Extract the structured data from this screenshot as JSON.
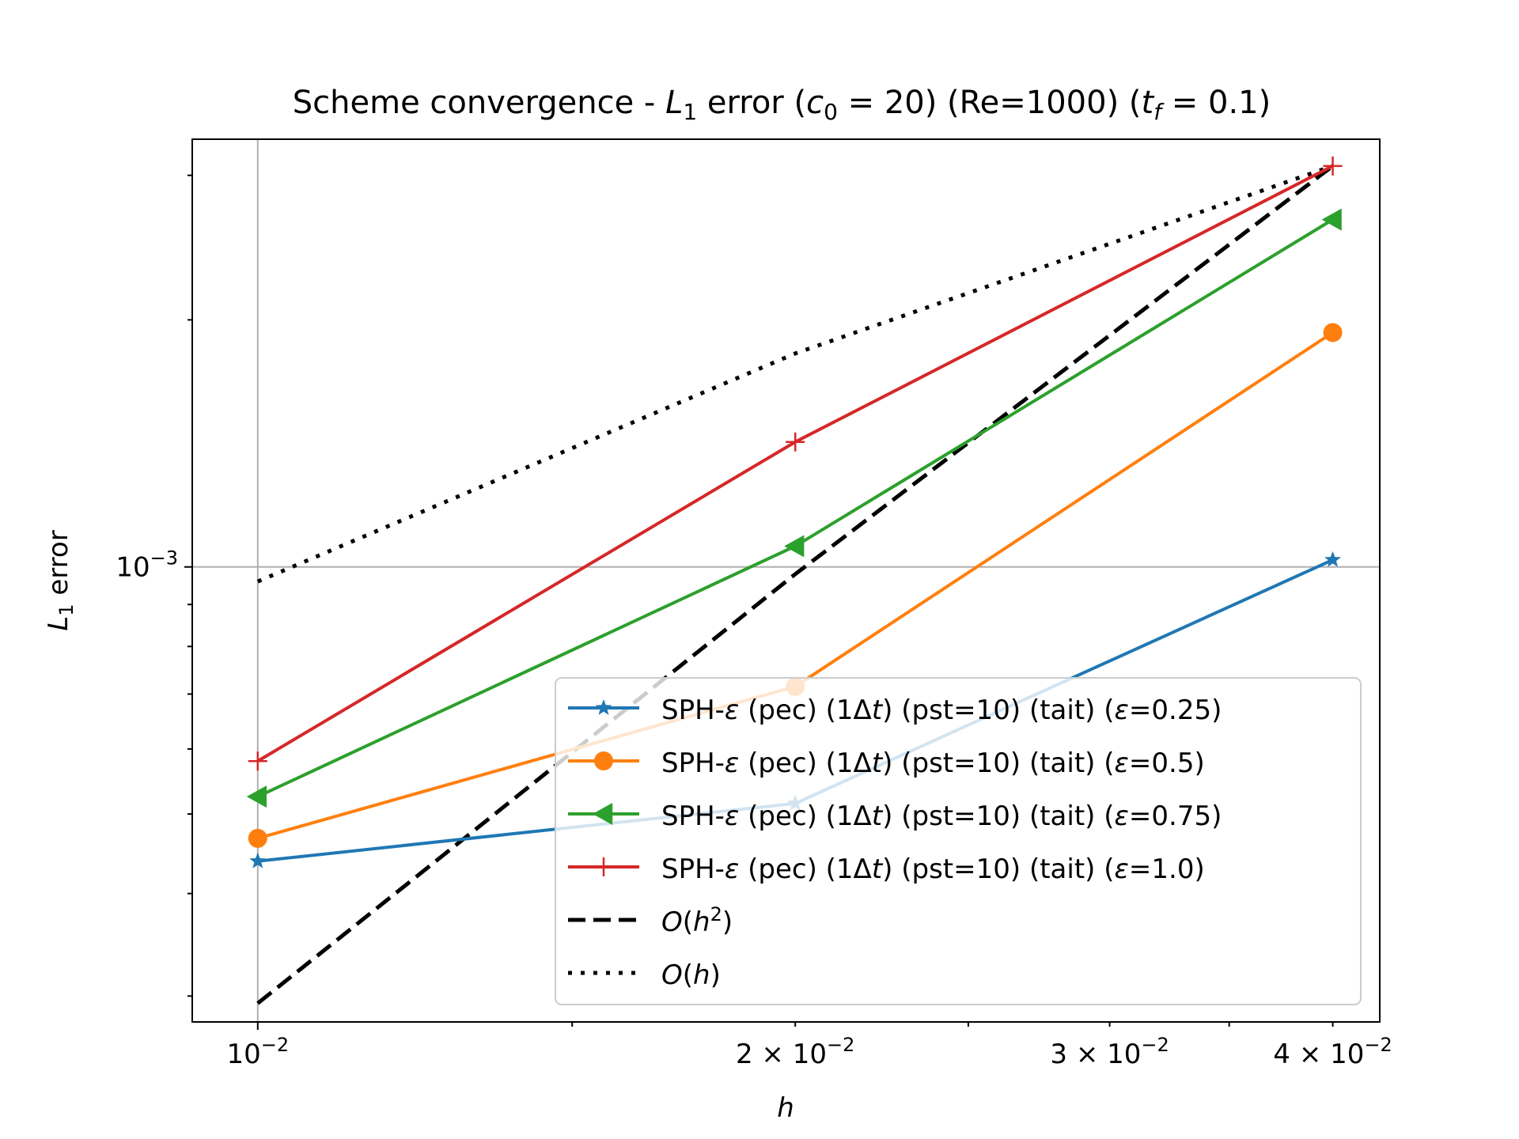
{
  "chart_data": {
    "type": "line",
    "title": {
      "prefix": "Scheme convergence - ",
      "l": "L",
      "l_sub": "1",
      "mid1": " error (",
      "c": "c",
      "c_sub": "0",
      "c_eq": " = 20) (Re=1000) (",
      "t": "t",
      "t_sub": "f",
      "t_eq": " = 0.1)"
    },
    "xlabel": "h",
    "ylabel": {
      "l": "L",
      "l_sub": "1",
      "rest": " error"
    },
    "x_scale": "log",
    "y_scale": "log",
    "xlim": [
      0.00919,
      0.0425
    ],
    "ylim": [
      0.000279,
      0.00332
    ],
    "x": [
      0.01,
      0.02,
      0.04
    ],
    "x_ticks": [
      {
        "value": 0.01,
        "mant": "",
        "base": "10",
        "exp": "−2"
      },
      {
        "value": 0.02,
        "mant": "2 × ",
        "base": "10",
        "exp": "−2"
      },
      {
        "value": 0.03,
        "mant": "3 × ",
        "base": "10",
        "exp": "−2"
      },
      {
        "value": 0.04,
        "mant": "4 × ",
        "base": "10",
        "exp": "−2"
      }
    ],
    "y_ticks": [
      {
        "value": 0.001,
        "base": "10",
        "exp": "−3"
      }
    ],
    "y_minor_ticks": [
      0.0003,
      0.0004,
      0.0005,
      0.0006,
      0.0007,
      0.0008,
      0.0009,
      0.002,
      0.003
    ],
    "grid": true,
    "legend_position": "lower-right",
    "series": [
      {
        "label": {
          "pre": "SPH-",
          "eps": "ε",
          "mid": " (pec) (1Δ",
          "t": "t",
          "post": ") (pst=10) (tait) (",
          "eps2": "ε",
          "val": "=0.25)"
        },
        "values": [
          0.000438,
          0.000515,
          0.00102
        ],
        "color": "#1f77b4",
        "marker": "star",
        "dash": "solid"
      },
      {
        "label": {
          "pre": "SPH-",
          "eps": "ε",
          "mid": " (pec) (1Δ",
          "t": "t",
          "post": ") (pst=10) (tait) (",
          "eps2": "ε",
          "val": "=0.5)"
        },
        "values": [
          0.000467,
          0.000715,
          0.00193
        ],
        "color": "#ff7f0e",
        "marker": "circle",
        "dash": "solid"
      },
      {
        "label": {
          "pre": "SPH-",
          "eps": "ε",
          "mid": " (pec) (1Δ",
          "t": "t",
          "post": ") (pst=10) (tait) (",
          "eps2": "ε",
          "val": "=0.75)"
        },
        "values": [
          0.000525,
          0.00106,
          0.00265
        ],
        "color": "#2ca02c",
        "marker": "triangle-left",
        "dash": "solid"
      },
      {
        "label": {
          "pre": "SPH-",
          "eps": "ε",
          "mid": " (pec) (1Δ",
          "t": "t",
          "post": ") (pst=10) (tait) (",
          "eps2": "ε",
          "val": "=1.0)"
        },
        "values": [
          0.00058,
          0.00142,
          0.00308
        ],
        "color": "#d62728",
        "marker": "plus",
        "dash": "solid"
      },
      {
        "label": {
          "o": "O",
          "open": "(",
          "h": "h",
          "sup": "2",
          "close": ")"
        },
        "values": [
          0.000294,
          0.00098,
          0.00308
        ],
        "color": "#000000",
        "marker": "none",
        "dash": "dashed"
      },
      {
        "label": {
          "o": "O",
          "open": "(",
          "h": "h",
          "sup": "",
          "close": ")"
        },
        "values": [
          0.00096,
          0.00182,
          0.00308
        ],
        "color": "#000000",
        "marker": "none",
        "dash": "dotted"
      }
    ]
  }
}
